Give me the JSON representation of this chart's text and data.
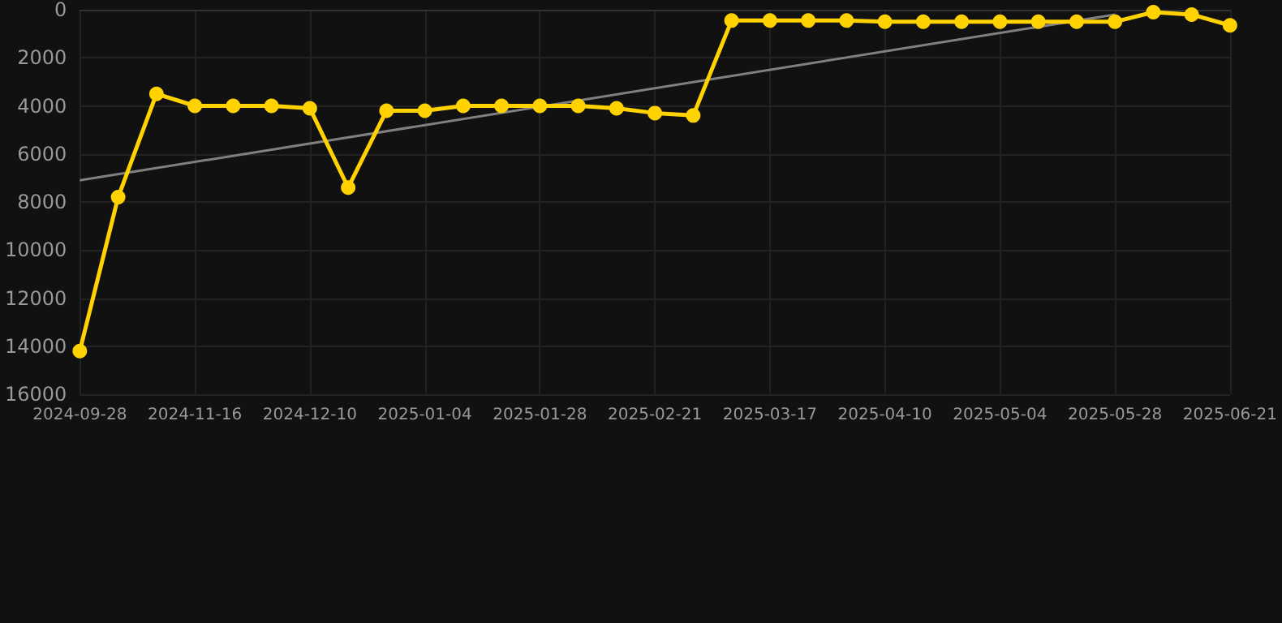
{
  "chart_data": {
    "type": "line",
    "categories": [
      "2024-09-28",
      null,
      null,
      "2024-11-16",
      null,
      null,
      "2024-12-10",
      null,
      null,
      "2025-01-04",
      null,
      null,
      "2025-01-28",
      null,
      null,
      "2025-02-21",
      null,
      null,
      "2025-03-17",
      null,
      null,
      "2025-04-10",
      null,
      null,
      "2025-05-04",
      null,
      null,
      "2025-05-28",
      null,
      null,
      "2025-06-21"
    ],
    "series": [
      {
        "color": "#ffd200",
        "marker": "circle",
        "values": [
          14200,
          7800,
          3500,
          4000,
          4000,
          4000,
          4100,
          7400,
          4200,
          4200,
          4000,
          4000,
          4000,
          4000,
          4100,
          4300,
          4400,
          450,
          450,
          450,
          450,
          500,
          500,
          500,
          500,
          500,
          500,
          500,
          100,
          200,
          650
        ]
      },
      {
        "color": "#808080",
        "marker": "none",
        "values": [
          7100,
          null,
          null,
          null,
          null,
          null,
          null,
          null,
          null,
          null,
          null,
          null,
          null,
          null,
          null,
          null,
          null,
          null,
          null,
          null,
          null,
          null,
          null,
          null,
          null,
          null,
          null,
          200,
          null,
          null,
          null
        ]
      }
    ],
    "ylim": [
      16000,
      0
    ],
    "yticks": [
      0,
      2000,
      4000,
      6000,
      8000,
      10000,
      12000,
      14000,
      16000
    ],
    "grid": true
  }
}
